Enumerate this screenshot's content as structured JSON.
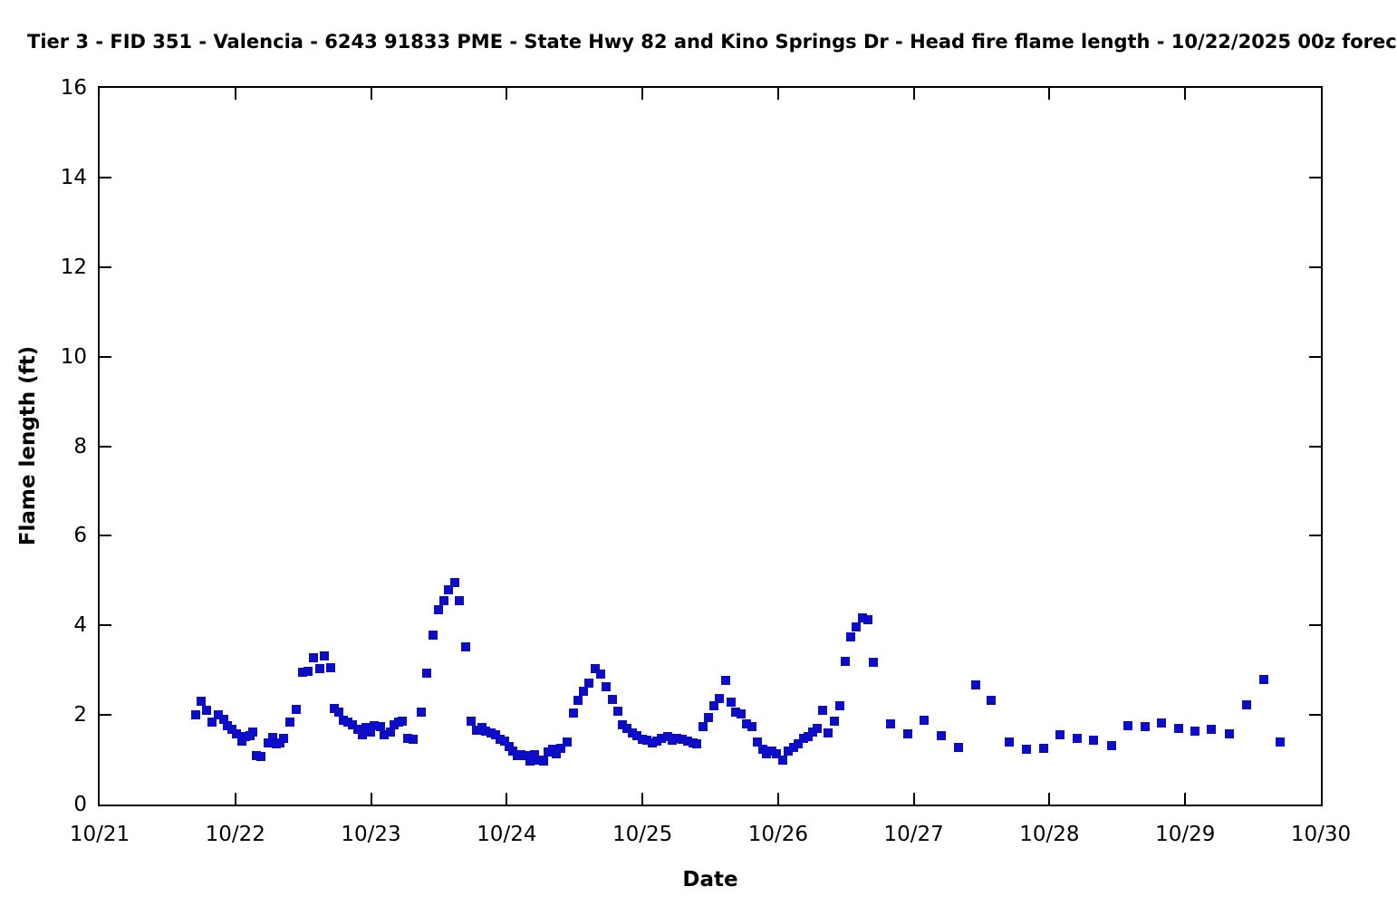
{
  "title": "Tier 3 - FID 351 - Valencia - 6243 91833 PME - State Hwy 82 and Kino Springs Dr - Head fire flame length - 10/22/2025 00z forec",
  "chart_data": {
    "type": "scatter",
    "title": "Tier 3 - FID 351 - Valencia - 6243 91833 PME - State Hwy 82 and Kino Springs Dr - Head fire flame length - 10/22/2025 00z forec",
    "xlabel": "Date",
    "ylabel": "Flame length (ft)",
    "x_tick_labels": [
      "10/21",
      "10/22",
      "10/23",
      "10/24",
      "10/25",
      "10/26",
      "10/27",
      "10/28",
      "10/29",
      "10/30"
    ],
    "y_ticks": [
      0,
      2,
      4,
      6,
      8,
      10,
      12,
      14,
      16
    ],
    "ylim": [
      0,
      16
    ],
    "xlim_days": [
      0,
      9
    ],
    "x_units": "days after 10/21 00:00",
    "grid": false,
    "legend": "none",
    "marker": "filled-square",
    "marker_size_px": 10,
    "marker_color": "#0d0dc8",
    "series_name": "Head fire flame length (ft)",
    "points": [
      [
        0.705,
        2.0
      ],
      [
        0.745,
        2.3
      ],
      [
        0.787,
        2.1
      ],
      [
        0.825,
        1.85
      ],
      [
        0.872,
        2.0
      ],
      [
        0.912,
        1.9
      ],
      [
        0.942,
        1.75
      ],
      [
        0.975,
        1.68
      ],
      [
        1.008,
        1.58
      ],
      [
        1.045,
        1.42
      ],
      [
        1.072,
        1.52
      ],
      [
        1.105,
        1.53
      ],
      [
        1.13,
        1.62
      ],
      [
        1.158,
        1.1
      ],
      [
        1.19,
        1.08
      ],
      [
        1.24,
        1.38
      ],
      [
        1.273,
        1.5
      ],
      [
        1.3,
        1.35
      ],
      [
        1.327,
        1.38
      ],
      [
        1.357,
        1.48
      ],
      [
        1.4,
        1.85
      ],
      [
        1.452,
        2.13
      ],
      [
        1.495,
        2.95
      ],
      [
        1.533,
        2.98
      ],
      [
        1.578,
        3.28
      ],
      [
        1.622,
        3.03
      ],
      [
        1.657,
        3.32
      ],
      [
        1.7,
        3.05
      ],
      [
        1.732,
        2.15
      ],
      [
        1.763,
        2.07
      ],
      [
        1.795,
        1.88
      ],
      [
        1.828,
        1.85
      ],
      [
        1.862,
        1.77
      ],
      [
        1.9,
        1.68
      ],
      [
        1.933,
        1.55
      ],
      [
        1.963,
        1.72
      ],
      [
        1.995,
        1.62
      ],
      [
        2.022,
        1.75
      ],
      [
        2.068,
        1.73
      ],
      [
        2.098,
        1.55
      ],
      [
        2.14,
        1.62
      ],
      [
        2.172,
        1.77
      ],
      [
        2.205,
        1.85
      ],
      [
        2.233,
        1.86
      ],
      [
        2.268,
        1.48
      ],
      [
        2.31,
        1.45
      ],
      [
        2.368,
        2.07
      ],
      [
        2.412,
        2.94
      ],
      [
        2.455,
        3.78
      ],
      [
        2.5,
        4.35
      ],
      [
        2.535,
        4.55
      ],
      [
        2.573,
        4.8
      ],
      [
        2.617,
        4.95
      ],
      [
        2.648,
        4.55
      ],
      [
        2.7,
        3.52
      ],
      [
        2.74,
        1.86
      ],
      [
        2.778,
        1.66
      ],
      [
        2.815,
        1.72
      ],
      [
        2.847,
        1.63
      ],
      [
        2.882,
        1.59
      ],
      [
        2.918,
        1.56
      ],
      [
        2.948,
        1.46
      ],
      [
        2.985,
        1.41
      ],
      [
        3.015,
        1.29
      ],
      [
        3.047,
        1.19
      ],
      [
        3.078,
        1.09
      ],
      [
        3.107,
        1.12
      ],
      [
        3.14,
        1.09
      ],
      [
        3.173,
        0.98
      ],
      [
        3.207,
        1.12
      ],
      [
        3.24,
        1.0
      ],
      [
        3.273,
        0.98
      ],
      [
        3.305,
        1.17
      ],
      [
        3.34,
        1.23
      ],
      [
        3.367,
        1.14
      ],
      [
        3.4,
        1.25
      ],
      [
        3.447,
        1.39
      ],
      [
        3.493,
        2.05
      ],
      [
        3.527,
        2.33
      ],
      [
        3.567,
        2.53
      ],
      [
        3.607,
        2.72
      ],
      [
        3.655,
        3.03
      ],
      [
        3.695,
        2.91
      ],
      [
        3.733,
        2.62
      ],
      [
        3.778,
        2.35
      ],
      [
        3.822,
        2.08
      ],
      [
        3.855,
        1.78
      ],
      [
        3.888,
        1.7
      ],
      [
        3.927,
        1.59
      ],
      [
        3.962,
        1.54
      ],
      [
        4.0,
        1.46
      ],
      [
        4.035,
        1.43
      ],
      [
        4.072,
        1.37
      ],
      [
        4.107,
        1.42
      ],
      [
        4.142,
        1.47
      ],
      [
        4.185,
        1.51
      ],
      [
        4.217,
        1.44
      ],
      [
        4.255,
        1.47
      ],
      [
        4.29,
        1.45
      ],
      [
        4.33,
        1.42
      ],
      [
        4.37,
        1.37
      ],
      [
        4.403,
        1.36
      ],
      [
        4.448,
        1.73
      ],
      [
        4.487,
        1.95
      ],
      [
        4.528,
        2.2
      ],
      [
        4.567,
        2.37
      ],
      [
        4.612,
        2.78
      ],
      [
        4.652,
        2.29
      ],
      [
        4.69,
        2.06
      ],
      [
        4.73,
        2.02
      ],
      [
        4.767,
        1.81
      ],
      [
        4.807,
        1.73
      ],
      [
        4.845,
        1.39
      ],
      [
        4.885,
        1.24
      ],
      [
        4.917,
        1.14
      ],
      [
        4.955,
        1.19
      ],
      [
        4.99,
        1.14
      ],
      [
        5.036,
        1.0
      ],
      [
        5.074,
        1.19
      ],
      [
        5.114,
        1.27
      ],
      [
        5.146,
        1.36
      ],
      [
        5.186,
        1.48
      ],
      [
        5.219,
        1.52
      ],
      [
        5.252,
        1.61
      ],
      [
        5.286,
        1.7
      ],
      [
        5.33,
        2.1
      ],
      [
        5.368,
        1.6
      ],
      [
        5.413,
        1.86
      ],
      [
        5.453,
        2.2
      ],
      [
        5.493,
        3.2
      ],
      [
        5.532,
        3.74
      ],
      [
        5.572,
        3.96
      ],
      [
        5.62,
        4.17
      ],
      [
        5.66,
        4.13
      ],
      [
        5.7,
        3.17
      ],
      [
        5.827,
        1.8
      ],
      [
        5.954,
        1.58
      ],
      [
        6.076,
        1.88
      ],
      [
        6.205,
        1.53
      ],
      [
        6.332,
        1.28
      ],
      [
        6.457,
        2.67
      ],
      [
        6.572,
        2.32
      ],
      [
        6.703,
        1.39
      ],
      [
        6.83,
        1.23
      ],
      [
        6.955,
        1.26
      ],
      [
        7.077,
        1.56
      ],
      [
        7.206,
        1.48
      ],
      [
        7.326,
        1.44
      ],
      [
        7.456,
        1.31
      ],
      [
        7.578,
        1.76
      ],
      [
        7.705,
        1.73
      ],
      [
        7.823,
        1.83
      ],
      [
        7.95,
        1.69
      ],
      [
        8.074,
        1.64
      ],
      [
        8.194,
        1.68
      ],
      [
        8.324,
        1.58
      ],
      [
        8.453,
        2.22
      ],
      [
        8.58,
        2.8
      ],
      [
        8.702,
        1.4
      ]
    ]
  }
}
